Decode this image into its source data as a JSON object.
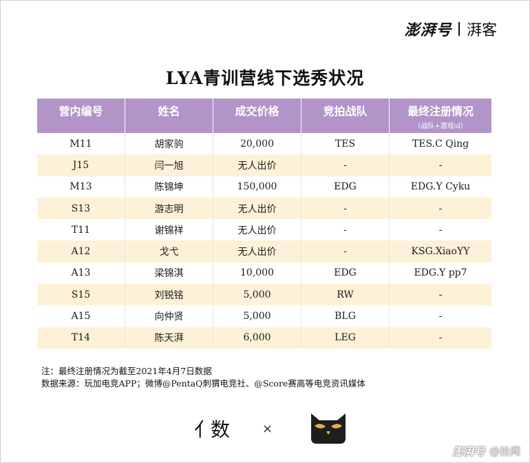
{
  "brand": {
    "name": "澎湃号",
    "channel": "湃客"
  },
  "title": "LYA青训营线下选秀状况",
  "table": {
    "headers": [
      {
        "label": "营内编号",
        "sub": ""
      },
      {
        "label": "姓名",
        "sub": ""
      },
      {
        "label": "成交价格",
        "sub": ""
      },
      {
        "label": "竞拍战队",
        "sub": ""
      },
      {
        "label": "最终注册情况",
        "sub": "（战队+游戏id）"
      }
    ],
    "rows": [
      [
        "M11",
        "胡家驹",
        "20,000",
        "TES",
        "TES.C Qing"
      ],
      [
        "J15",
        "闫一旭",
        "无人出价",
        "-",
        "-"
      ],
      [
        "M13",
        "陈锦坤",
        "150,000",
        "EDG",
        "EDG.Y Cyku"
      ],
      [
        "S13",
        "游志明",
        "无人出价",
        "-",
        "-"
      ],
      [
        "T11",
        "谢锦祥",
        "无人出价",
        "-",
        "-"
      ],
      [
        "A12",
        "戈弋",
        "无人出价",
        "-",
        "KSG.XiaoYY"
      ],
      [
        "A13",
        "梁锦淇",
        "10,000",
        "EDG",
        "EDG.Y pp7"
      ],
      [
        "S15",
        "刘锐铭",
        "5,000",
        "RW",
        "-"
      ],
      [
        "A15",
        "向仲贤",
        "5,000",
        "BLG",
        "-"
      ],
      [
        "T14",
        "陈天湃",
        "6,000",
        "LEG",
        "-"
      ]
    ]
  },
  "notes": {
    "note": "注：最终注册情况为截至2021年4月7日数据",
    "source": "数据来源：玩加电竞APP；微博@PentaQ刺猬电竞社、@Score赛高等电竞资讯媒体"
  },
  "logos": {
    "left": "数",
    "separator": "×"
  },
  "footer": {
    "platform": "澎湃号",
    "account": "@拾闻"
  },
  "colors": {
    "header_bg": "#b294c9",
    "row_alt": "#fdf1d8",
    "owl": "#1e1e1e",
    "owl_eyes": "#e8b04a"
  }
}
